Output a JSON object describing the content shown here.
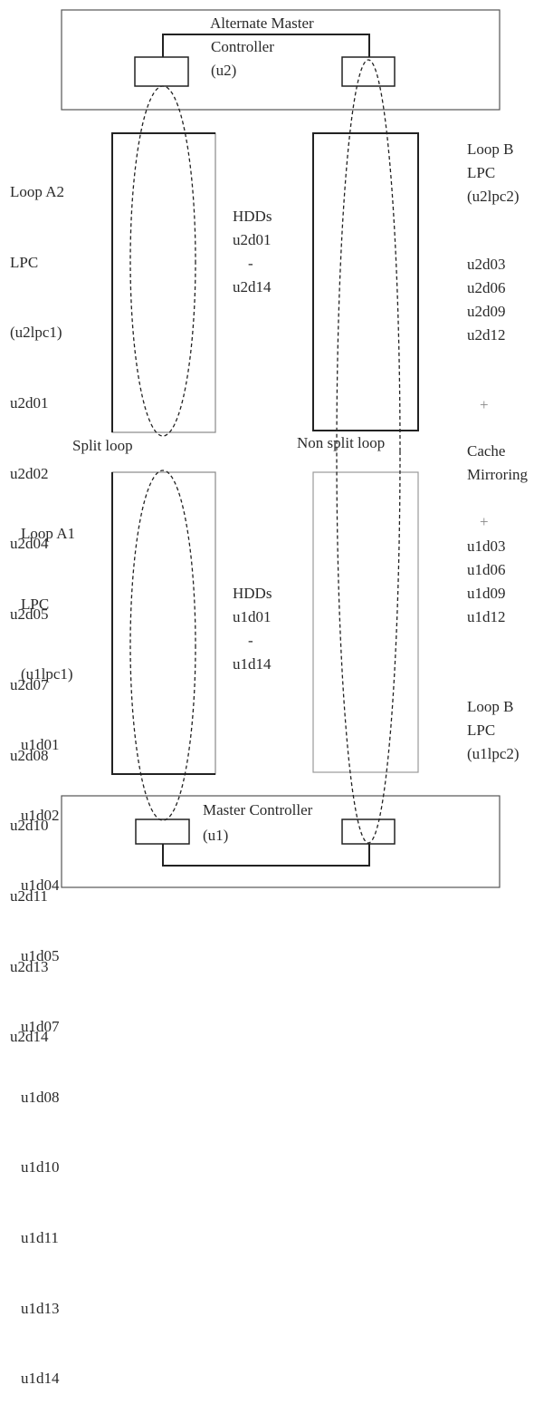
{
  "alternate_master_controller": {
    "line1": "Alternate Master",
    "line2": "Controller",
    "line3": "(u2)"
  },
  "master_controller": {
    "line1": "Master Controller",
    "line2": "(u1)"
  },
  "loop_a2": {
    "label": [
      "Loop A2",
      "LPC",
      "(u2lpc1)"
    ],
    "drives": [
      "u2d01",
      "u2d02",
      "u2d04",
      "u2d05",
      "u2d07",
      "u2d08",
      "u2d10",
      "u2d11",
      "u2d13",
      "u2d14"
    ]
  },
  "loop_a1": {
    "label": [
      "Loop A1",
      "LPC",
      "(u1lpc1)"
    ],
    "drives": [
      "u1d01",
      "u1d02",
      "u1d04",
      "u1d05",
      "u1d07",
      "u1d08",
      "u1d10",
      "u1d11",
      "u1d13",
      "u1d14"
    ]
  },
  "loop_b_top": {
    "label": [
      "Loop B",
      "LPC",
      "(u2lpc2)"
    ],
    "drives": [
      "u2d03",
      "u2d06",
      "u2d09",
      "u2d12"
    ]
  },
  "loop_b_bottom": {
    "label": [
      "Loop B",
      "LPC",
      "(u1lpc2)"
    ],
    "drives": [
      "u1d03",
      "u1d06",
      "u1d09",
      "u1d12"
    ]
  },
  "hdds_top": [
    "HDDs",
    "u2d01",
    "-",
    "u2d14"
  ],
  "hdds_bottom": [
    "HDDs",
    "u1d01",
    "-",
    "u1d14"
  ],
  "split_loop_label": "Split loop",
  "non_split_loop_label": "Non split loop",
  "cache_mirroring": {
    "plus_top": "+",
    "line1": "Cache",
    "line2": "Mirroring",
    "plus_bottom": "+"
  }
}
